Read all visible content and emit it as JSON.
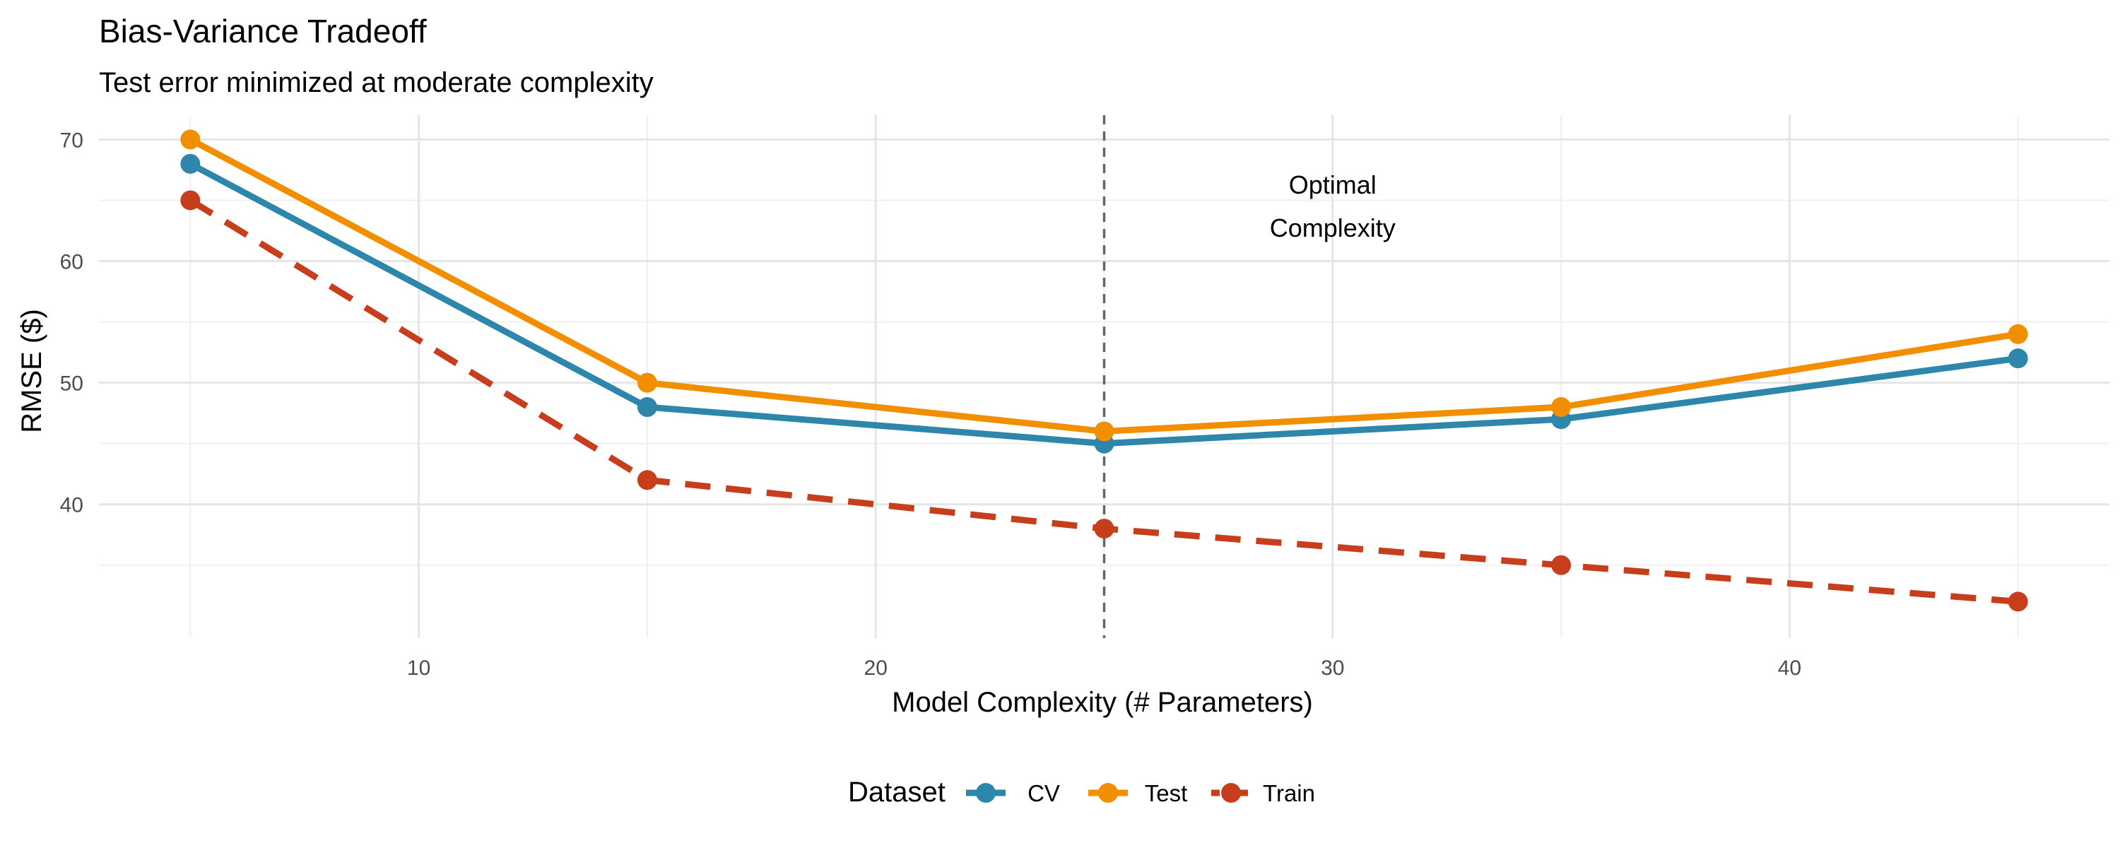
{
  "chart_data": {
    "type": "line",
    "title": "Bias-Variance Tradeoff",
    "subtitle": "Test error minimized at moderate complexity",
    "xlabel": "Model Complexity (# Parameters)",
    "ylabel": "RMSE ($)",
    "x": [
      5,
      15,
      25,
      35,
      45
    ],
    "xlim": [
      3,
      47
    ],
    "ylim": [
      29,
      72
    ],
    "x_ticks": [
      10,
      20,
      30,
      40
    ],
    "y_ticks": [
      40,
      50,
      60,
      70
    ],
    "grid": true,
    "series": [
      {
        "name": "CV",
        "values": [
          68,
          48,
          45,
          47,
          52
        ],
        "color": "#2E86AB",
        "linestyle": "solid"
      },
      {
        "name": "Test",
        "values": [
          70,
          50,
          46,
          48,
          54
        ],
        "color": "#F18F01",
        "linestyle": "solid"
      },
      {
        "name": "Train",
        "values": [
          65,
          42,
          38,
          35,
          32
        ],
        "color": "#C73E1D",
        "linestyle": "dashed"
      }
    ],
    "reference_line": {
      "x": 25,
      "linestyle": "dashed",
      "color": "#666666"
    },
    "annotation": {
      "lines": [
        "Optimal",
        "Complexity"
      ],
      "x": 30,
      "y": 64.5
    },
    "legend": {
      "title": "Dataset",
      "position": "bottom"
    }
  }
}
